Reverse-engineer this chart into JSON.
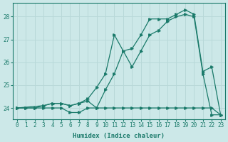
{
  "xlabel": "Humidex (Indice chaleur)",
  "bg_color": "#cce8e8",
  "grid_color": "#b8d8d8",
  "line_color": "#1a7a6a",
  "xlim": [
    -0.5,
    23.5
  ],
  "ylim": [
    23.5,
    28.6
  ],
  "yticks": [
    24,
    25,
    26,
    27,
    28
  ],
  "xticks": [
    0,
    1,
    2,
    3,
    4,
    5,
    6,
    7,
    8,
    9,
    10,
    11,
    12,
    13,
    14,
    15,
    16,
    17,
    18,
    19,
    20,
    21,
    22,
    23
  ],
  "series_min_x": [
    0,
    1,
    2,
    3,
    4,
    5,
    6,
    7,
    8,
    9,
    10,
    11,
    12,
    13,
    14,
    15,
    16,
    17,
    18,
    19,
    20,
    21,
    22,
    23
  ],
  "series_min_y": [
    24.0,
    24.0,
    24.0,
    24.0,
    24.0,
    24.0,
    23.8,
    23.8,
    24.0,
    24.0,
    24.0,
    24.0,
    24.0,
    24.0,
    24.0,
    24.0,
    24.0,
    24.0,
    24.0,
    24.0,
    24.0,
    24.0,
    24.0,
    23.7
  ],
  "series_max_x": [
    0,
    1,
    2,
    3,
    4,
    5,
    6,
    7,
    8,
    9,
    10,
    11,
    12,
    13,
    14,
    15,
    16,
    17,
    18,
    19,
    20,
    21,
    22,
    23
  ],
  "series_max_y": [
    24.0,
    24.0,
    24.0,
    24.1,
    24.2,
    24.2,
    24.1,
    24.2,
    24.4,
    24.9,
    25.5,
    27.2,
    26.5,
    26.6,
    27.2,
    27.9,
    27.9,
    27.9,
    28.1,
    28.3,
    28.1,
    25.6,
    25.8,
    23.7
  ],
  "series_mid_x": [
    0,
    3,
    4,
    5,
    6,
    7,
    8,
    9,
    10,
    11,
    12,
    13,
    14,
    15,
    16,
    17,
    18,
    19,
    20,
    21,
    22,
    23
  ],
  "series_mid_y": [
    24.0,
    24.1,
    24.2,
    24.2,
    24.1,
    24.2,
    24.3,
    24.0,
    24.8,
    25.5,
    26.5,
    25.8,
    26.5,
    27.2,
    27.4,
    27.8,
    28.0,
    28.1,
    28.0,
    25.5,
    23.7,
    23.7
  ]
}
